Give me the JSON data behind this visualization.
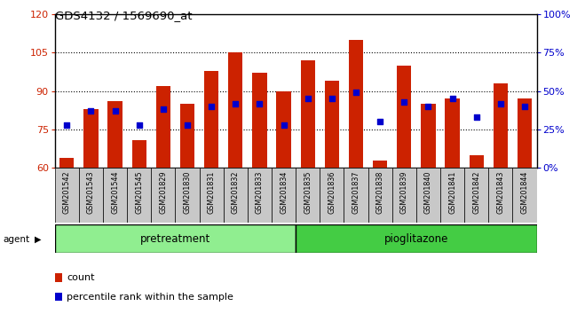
{
  "title": "GDS4132 / 1569690_at",
  "samples": [
    "GSM201542",
    "GSM201543",
    "GSM201544",
    "GSM201545",
    "GSM201829",
    "GSM201830",
    "GSM201831",
    "GSM201832",
    "GSM201833",
    "GSM201834",
    "GSM201835",
    "GSM201836",
    "GSM201837",
    "GSM201838",
    "GSM201839",
    "GSM201840",
    "GSM201841",
    "GSM201842",
    "GSM201843",
    "GSM201844"
  ],
  "count_values": [
    64,
    83,
    86,
    71,
    92,
    85,
    98,
    105,
    97,
    90,
    102,
    94,
    110,
    63,
    100,
    85,
    87,
    65,
    93,
    87
  ],
  "percentile_values": [
    28,
    37,
    37,
    28,
    38,
    28,
    40,
    42,
    42,
    28,
    45,
    45,
    49,
    30,
    43,
    40,
    45,
    33,
    42,
    40
  ],
  "ylim_left": [
    60,
    120
  ],
  "ylim_right": [
    0,
    100
  ],
  "yticks_left": [
    60,
    75,
    90,
    105,
    120
  ],
  "yticks_right": [
    0,
    25,
    50,
    75,
    100
  ],
  "ytick_labels_right": [
    "0%",
    "25%",
    "50%",
    "75%",
    "100%"
  ],
  "bar_color": "#cc2200",
  "dot_color": "#0000cc",
  "grid_lines": [
    75,
    90,
    105
  ],
  "pretreatment_count": 10,
  "pioglitazone_count": 10,
  "pretreatment_color": "#90ee90",
  "pioglitazone_color": "#44cc44",
  "agent_label": "agent",
  "pretreatment_label": "pretreatment",
  "pioglitazone_label": "pioglitazone",
  "legend_count_label": "count",
  "legend_pct_label": "percentile rank within the sample",
  "tick_color_left": "#cc2200",
  "tick_color_right": "#0000cc",
  "bar_width": 0.6,
  "cell_color": "#c8c8c8"
}
